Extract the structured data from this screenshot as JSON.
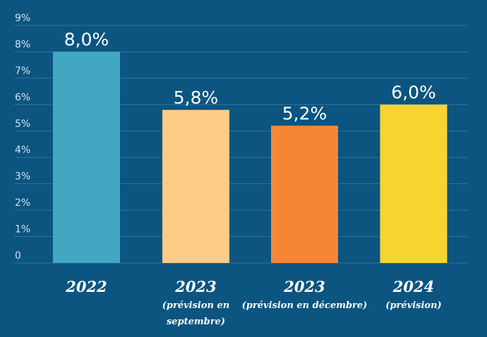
{
  "chart_data": {
    "type": "bar",
    "title": "",
    "xlabel": "",
    "ylabel": "",
    "ylim": [
      0,
      9
    ],
    "grid": true,
    "legend": "none",
    "y_ticks": [
      {
        "value": 0,
        "label": "0"
      },
      {
        "value": 1,
        "label": "1%"
      },
      {
        "value": 2,
        "label": "2%"
      },
      {
        "value": 3,
        "label": "3%"
      },
      {
        "value": 4,
        "label": "4%"
      },
      {
        "value": 5,
        "label": "5%"
      },
      {
        "value": 6,
        "label": "6%"
      },
      {
        "value": 7,
        "label": "7%"
      },
      {
        "value": 8,
        "label": "8%"
      },
      {
        "value": 9,
        "label": "9%"
      }
    ],
    "categories": [
      {
        "label": "2022",
        "sublabel": []
      },
      {
        "label": "2023",
        "sublabel": [
          "(prévision en",
          "septembre)"
        ]
      },
      {
        "label": "2023",
        "sublabel": [
          "(prévision en décembre)"
        ]
      },
      {
        "label": "2024",
        "sublabel": [
          "(prévision)"
        ]
      }
    ],
    "values": [
      8.0,
      5.8,
      5.2,
      6.0
    ],
    "data_labels": [
      "8,0%",
      "5,8%",
      "5,2%",
      "6,0%"
    ],
    "colors": [
      "#42a8c1",
      "#fccb85",
      "#f58634",
      "#f6d531"
    ]
  }
}
